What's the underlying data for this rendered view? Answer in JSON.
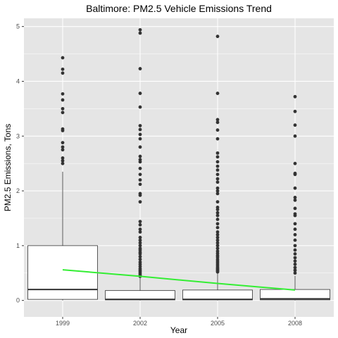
{
  "chart_data": {
    "type": "box",
    "title": "Baltimore: PM2.5 Vehicle Emissions Trend",
    "xlabel": "Year",
    "ylabel": "PM2.5 Emissions, Tons",
    "categories": [
      "1999",
      "2002",
      "2005",
      "2008"
    ],
    "ylim": [
      -0.3,
      5.15
    ],
    "yticks": [
      0,
      1,
      2,
      3,
      4,
      5
    ],
    "grid": true,
    "boxes": [
      {
        "category": "1999",
        "whisker_low": 0.0,
        "q1": 0.02,
        "median": 0.2,
        "q3": 1.0,
        "whisker_high": 2.35,
        "outliers": [
          4.43,
          4.22,
          4.15,
          3.77,
          3.66,
          3.5,
          3.43,
          3.13,
          3.1,
          2.88,
          2.8,
          2.75,
          2.6,
          2.55,
          2.5
        ]
      },
      {
        "category": "2002",
        "whisker_low": 0.0,
        "q1": 0.01,
        "median": 0.02,
        "q3": 0.18,
        "whisker_high": 0.42,
        "outliers": [
          4.94,
          4.88,
          4.23,
          3.78,
          3.53,
          3.19,
          3.12,
          3.03,
          2.95,
          2.8,
          2.63,
          2.57,
          2.53,
          2.41,
          2.3,
          2.2,
          2.12,
          1.95,
          1.92,
          1.8,
          1.44,
          1.38,
          1.3,
          1.25,
          1.15,
          1.1,
          1.05,
          1.0,
          0.95,
          0.92,
          0.88,
          0.85,
          0.8,
          0.75,
          0.7,
          0.66,
          0.62,
          0.58,
          0.55,
          0.52,
          0.49,
          0.46,
          0.44
        ]
      },
      {
        "category": "2005",
        "whisker_low": 0.0,
        "q1": 0.01,
        "median": 0.02,
        "q3": 0.19,
        "whisker_high": 0.5,
        "outliers": [
          4.82,
          3.78,
          3.3,
          3.25,
          3.11,
          2.95,
          2.69,
          2.62,
          2.53,
          2.45,
          2.38,
          2.3,
          2.22,
          2.16,
          2.05,
          2.0,
          1.95,
          1.8,
          1.7,
          1.66,
          1.6,
          1.55,
          1.48,
          1.4,
          1.33,
          1.25,
          1.2,
          1.15,
          1.1,
          1.05,
          1.0,
          0.95,
          0.9,
          0.86,
          0.82,
          0.79,
          0.75,
          0.72,
          0.69,
          0.66,
          0.63,
          0.6,
          0.58,
          0.56,
          0.54,
          0.52
        ]
      },
      {
        "category": "2008",
        "whisker_low": 0.0,
        "q1": 0.01,
        "median": 0.03,
        "q3": 0.2,
        "whisker_high": 0.45,
        "outliers": [
          3.72,
          3.45,
          3.2,
          3.0,
          2.5,
          2.32,
          2.3,
          2.05,
          1.88,
          1.83,
          1.68,
          1.58,
          1.55,
          1.4,
          1.3,
          1.2,
          1.1,
          1.0,
          0.92,
          0.85,
          0.78,
          0.72,
          0.66,
          0.6,
          0.55,
          0.5
        ]
      }
    ],
    "trend_line": {
      "categories": [
        "1999",
        "2002",
        "2005",
        "2008"
      ],
      "values": [
        0.56,
        0.44,
        0.31,
        0.19
      ]
    },
    "colors": {
      "panel_background": "#e5e5e5",
      "grid_major": "#ffffff",
      "box_fill": "#ffffff",
      "box_stroke": "#333333",
      "outlier": "#333333",
      "trend_line": "#33ee33"
    }
  }
}
